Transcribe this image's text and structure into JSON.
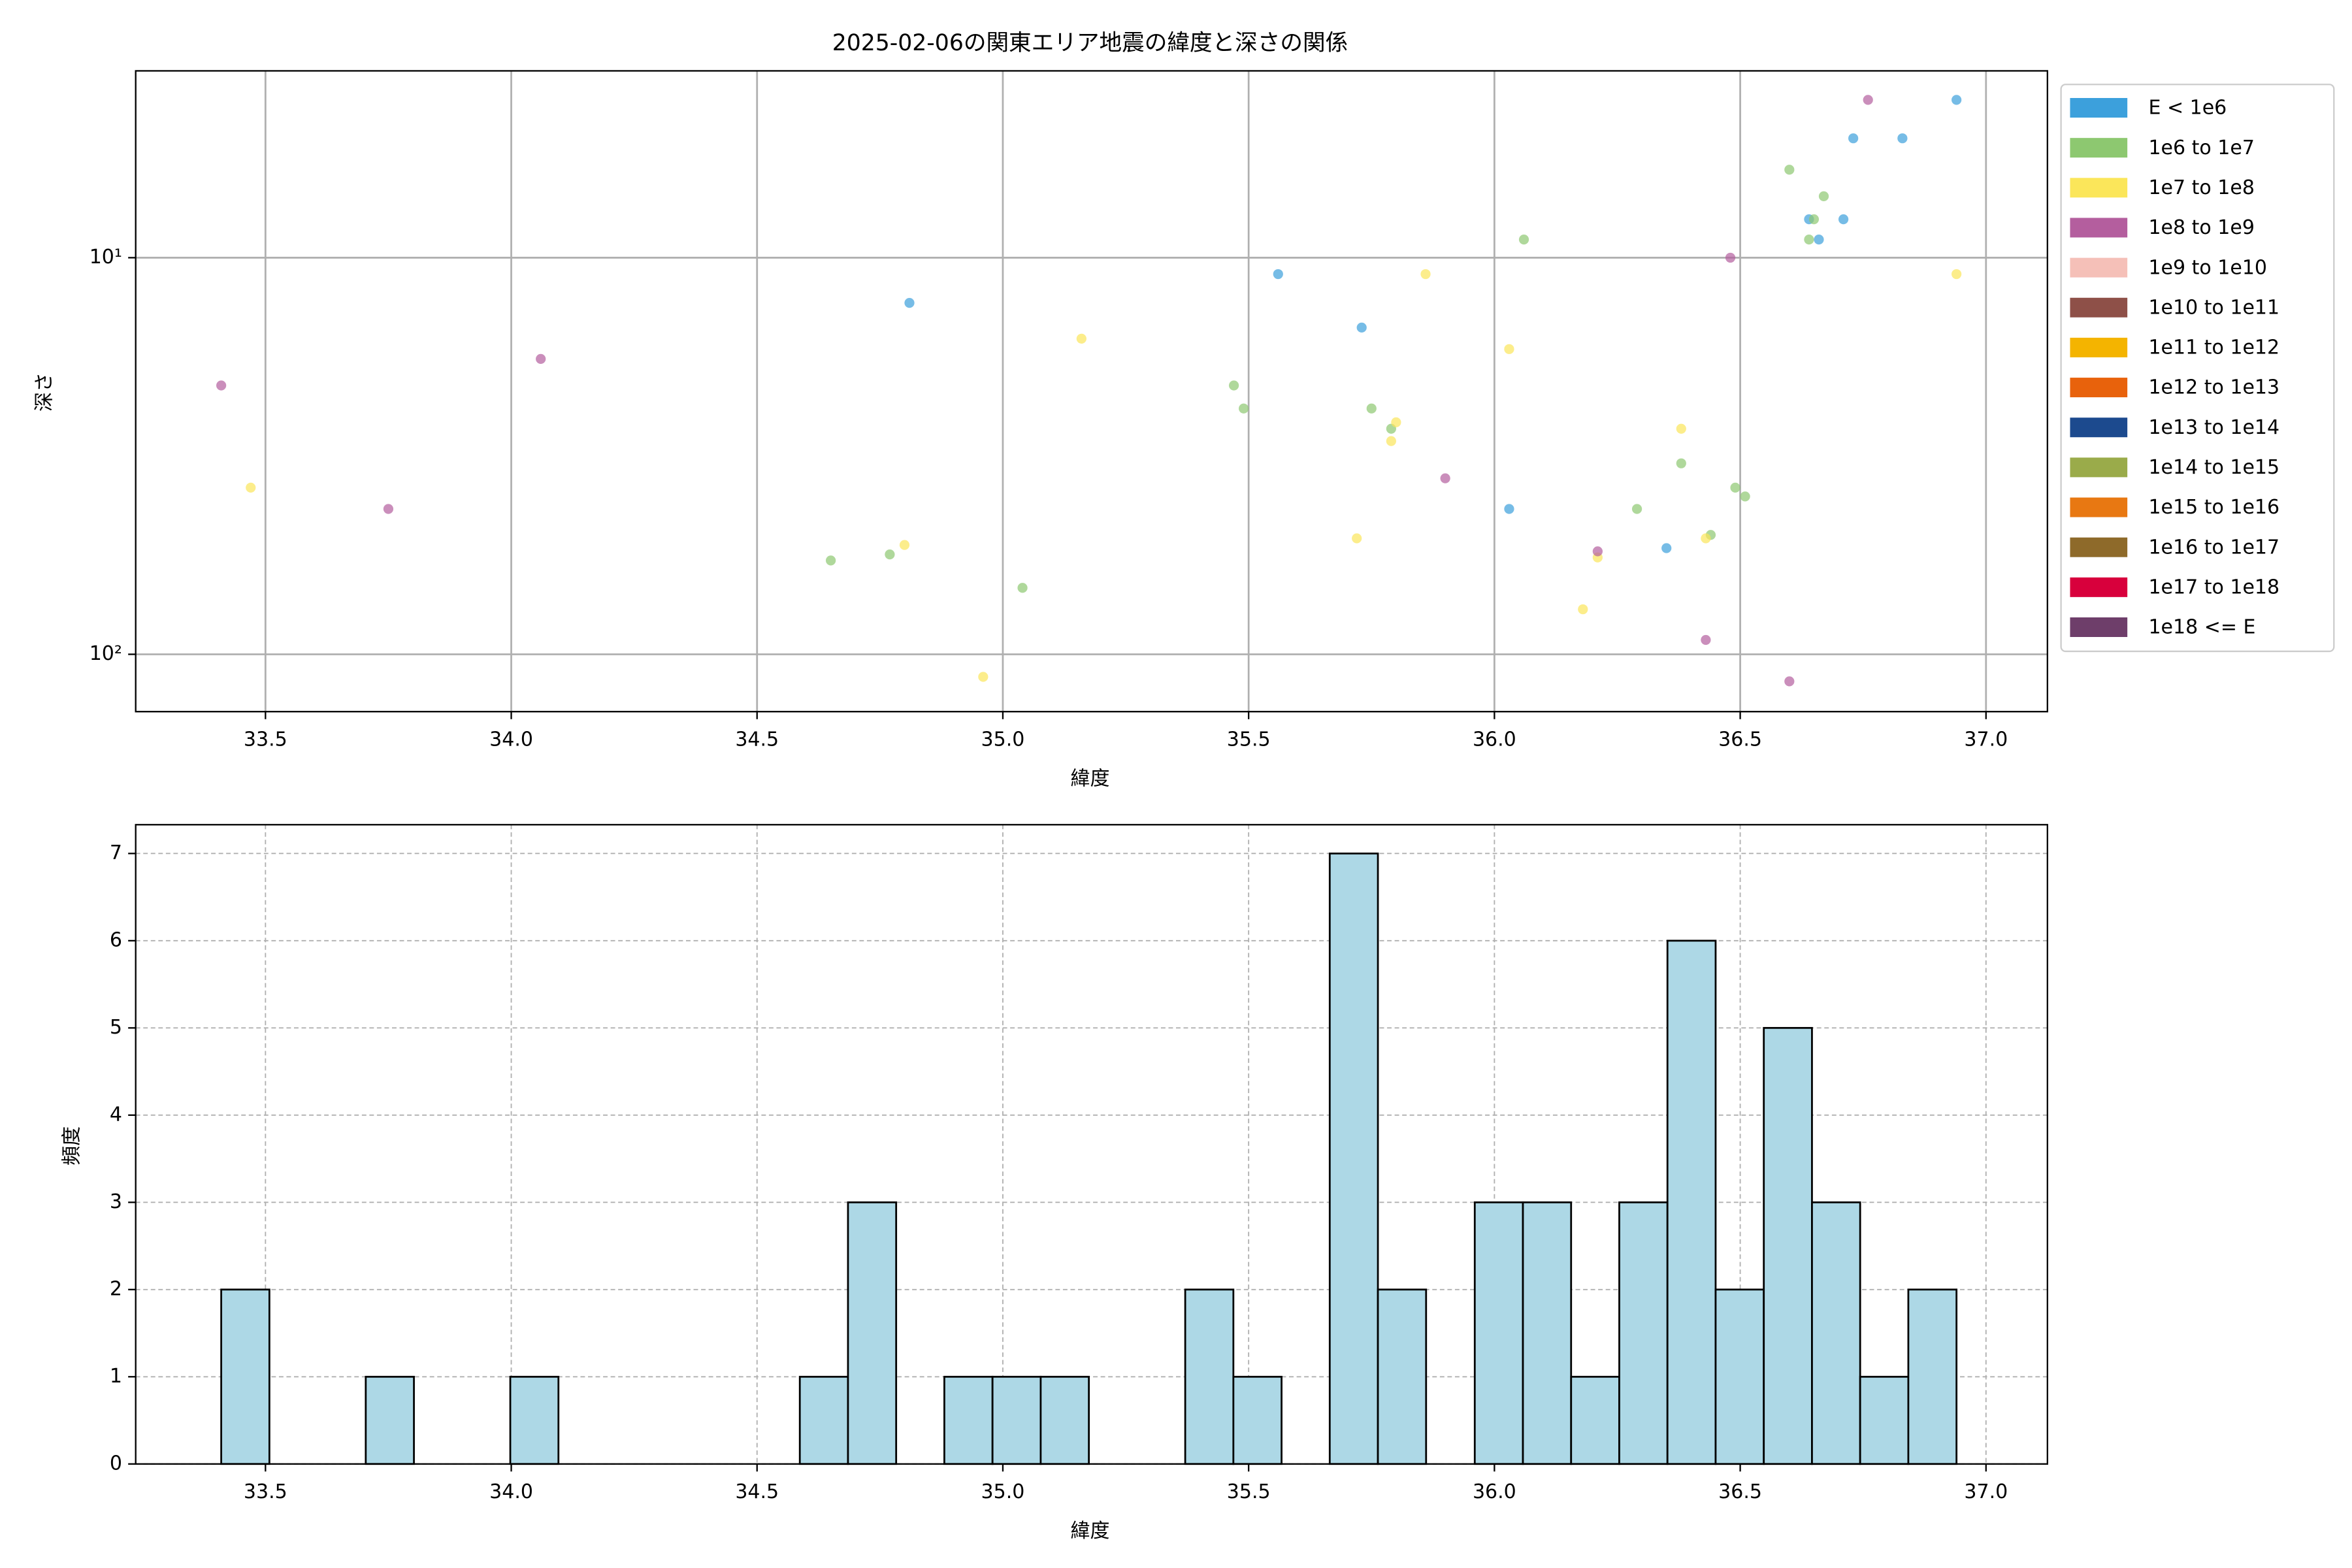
{
  "chart_data": [
    {
      "type": "scatter",
      "title": "2025-02-06の関東エリア地震の緯度と深さの関係",
      "x_label": "緯度",
      "y_label": "深さ",
      "xlim": [
        33.236,
        37.125
      ],
      "ylim": [
        3.38,
        139.5
      ],
      "y_scale": "log",
      "y_inverted": true,
      "xticks": [
        33.5,
        {
          "value": 34,
          "label": "34.0"
        },
        34.5,
        {
          "value": 35,
          "label": "35.0"
        },
        35.5,
        {
          "value": 36,
          "label": "36.0"
        },
        36.5,
        {
          "value": 37,
          "label": "37.0"
        }
      ],
      "yticks": [
        {
          "value": 10,
          "label": "10¹"
        },
        {
          "value": 100,
          "label": "10²"
        }
      ],
      "grid": true,
      "grid_linestyle": "solid",
      "legend": "outside-right",
      "series": [
        {
          "name": "E < 1e6",
          "color": "#3ca0dc",
          "x": [
            36.94,
            36.73,
            36.83,
            36.71,
            36.64,
            36.66,
            35.56,
            34.81,
            35.73,
            36.03,
            36.35
          ],
          "values": [
            4,
            5,
            5,
            8,
            8,
            9,
            11,
            13,
            15,
            43,
            54
          ]
        },
        {
          "name": "1e6 to 1e7",
          "color": "#8dc870",
          "x": [
            36.6,
            36.67,
            36.65,
            36.64,
            36.06,
            35.47,
            35.49,
            35.75,
            35.79,
            36.38,
            36.49,
            36.51,
            36.29,
            34.65,
            34.77,
            35.04,
            36.44
          ],
          "values": [
            6,
            7,
            8,
            9,
            9,
            21,
            24,
            24,
            27,
            33,
            38,
            40,
            43,
            58,
            56,
            68,
            50
          ]
        },
        {
          "name": "1e7 to 1e8",
          "color": "#fbe65a",
          "x": [
            35.86,
            36.94,
            35.16,
            36.03,
            35.8,
            35.79,
            36.38,
            33.47,
            34.8,
            35.72,
            36.43,
            36.21,
            36.18,
            34.96
          ],
          "values": [
            11,
            11,
            16,
            17,
            26,
            29,
            27,
            38,
            53,
            51,
            51,
            57,
            77,
            114
          ]
        },
        {
          "name": "1e8 to 1e9",
          "color": "#b45e9e",
          "x": [
            36.76,
            36.48,
            34.06,
            33.41,
            33.75,
            35.9,
            36.21,
            36.43,
            36.6
          ],
          "values": [
            4,
            10,
            18,
            21,
            43,
            36,
            55,
            92,
            117
          ]
        },
        {
          "name": "1e9 to 1e10",
          "color": "#f5c0b8",
          "x": [],
          "values": []
        },
        {
          "name": "1e10 to 1e11",
          "color": "#8e5048",
          "x": [],
          "values": []
        },
        {
          "name": "1e11 to 1e12",
          "color": "#f4b400",
          "x": [],
          "values": []
        },
        {
          "name": "1e12 to 1e13",
          "color": "#e8620c",
          "x": [],
          "values": []
        },
        {
          "name": "1e13 to 1e14",
          "color": "#1c4a8e",
          "x": [],
          "values": []
        },
        {
          "name": "1e14 to 1e15",
          "color": "#9aab4a",
          "x": [],
          "values": []
        },
        {
          "name": "1e15 to 1e16",
          "color": "#e87812",
          "x": [],
          "values": []
        },
        {
          "name": "1e16 to 1e17",
          "color": "#8e6a2a",
          "x": [],
          "values": []
        },
        {
          "name": "1e17 to 1e18",
          "color": "#d8003c",
          "x": [],
          "values": []
        },
        {
          "name": "1e18 <= E",
          "color": "#6e3e6a",
          "x": [],
          "values": []
        }
      ]
    },
    {
      "type": "histogram",
      "x_label": "緯度",
      "y_label": "頻度",
      "color": "#add8e6",
      "xlim": [
        33.236,
        37.125
      ],
      "ylim": [
        0,
        7.33
      ],
      "xticks": [
        33.5,
        {
          "value": 34,
          "label": "34.0"
        },
        34.5,
        {
          "value": 35,
          "label": "35.0"
        },
        35.5,
        {
          "value": 36,
          "label": "36.0"
        },
        36.5,
        {
          "value": 37,
          "label": "37.0"
        }
      ],
      "yticks": [
        0,
        1,
        2,
        3,
        4,
        5,
        6,
        7
      ],
      "grid": true,
      "grid_linestyle": "dashed",
      "bins": [
        33.41,
        33.508,
        33.606,
        33.704,
        33.802,
        33.9,
        33.998,
        34.096,
        34.194,
        34.292,
        34.391,
        34.489,
        34.587,
        34.685,
        34.783,
        34.881,
        34.979,
        35.077,
        35.175,
        35.273,
        35.371,
        35.469,
        35.567,
        35.665,
        35.763,
        35.861,
        35.96,
        36.058,
        36.156,
        36.254,
        36.352,
        36.45,
        36.548,
        36.646,
        36.744,
        36.842,
        36.94
      ],
      "values": [
        2,
        0,
        0,
        1,
        0,
        0,
        1,
        0,
        0,
        0,
        0,
        0,
        1,
        3,
        0,
        1,
        1,
        1,
        0,
        0,
        2,
        1,
        0,
        7,
        2,
        0,
        3,
        3,
        1,
        3,
        6,
        2,
        5,
        3,
        1,
        2
      ]
    }
  ]
}
